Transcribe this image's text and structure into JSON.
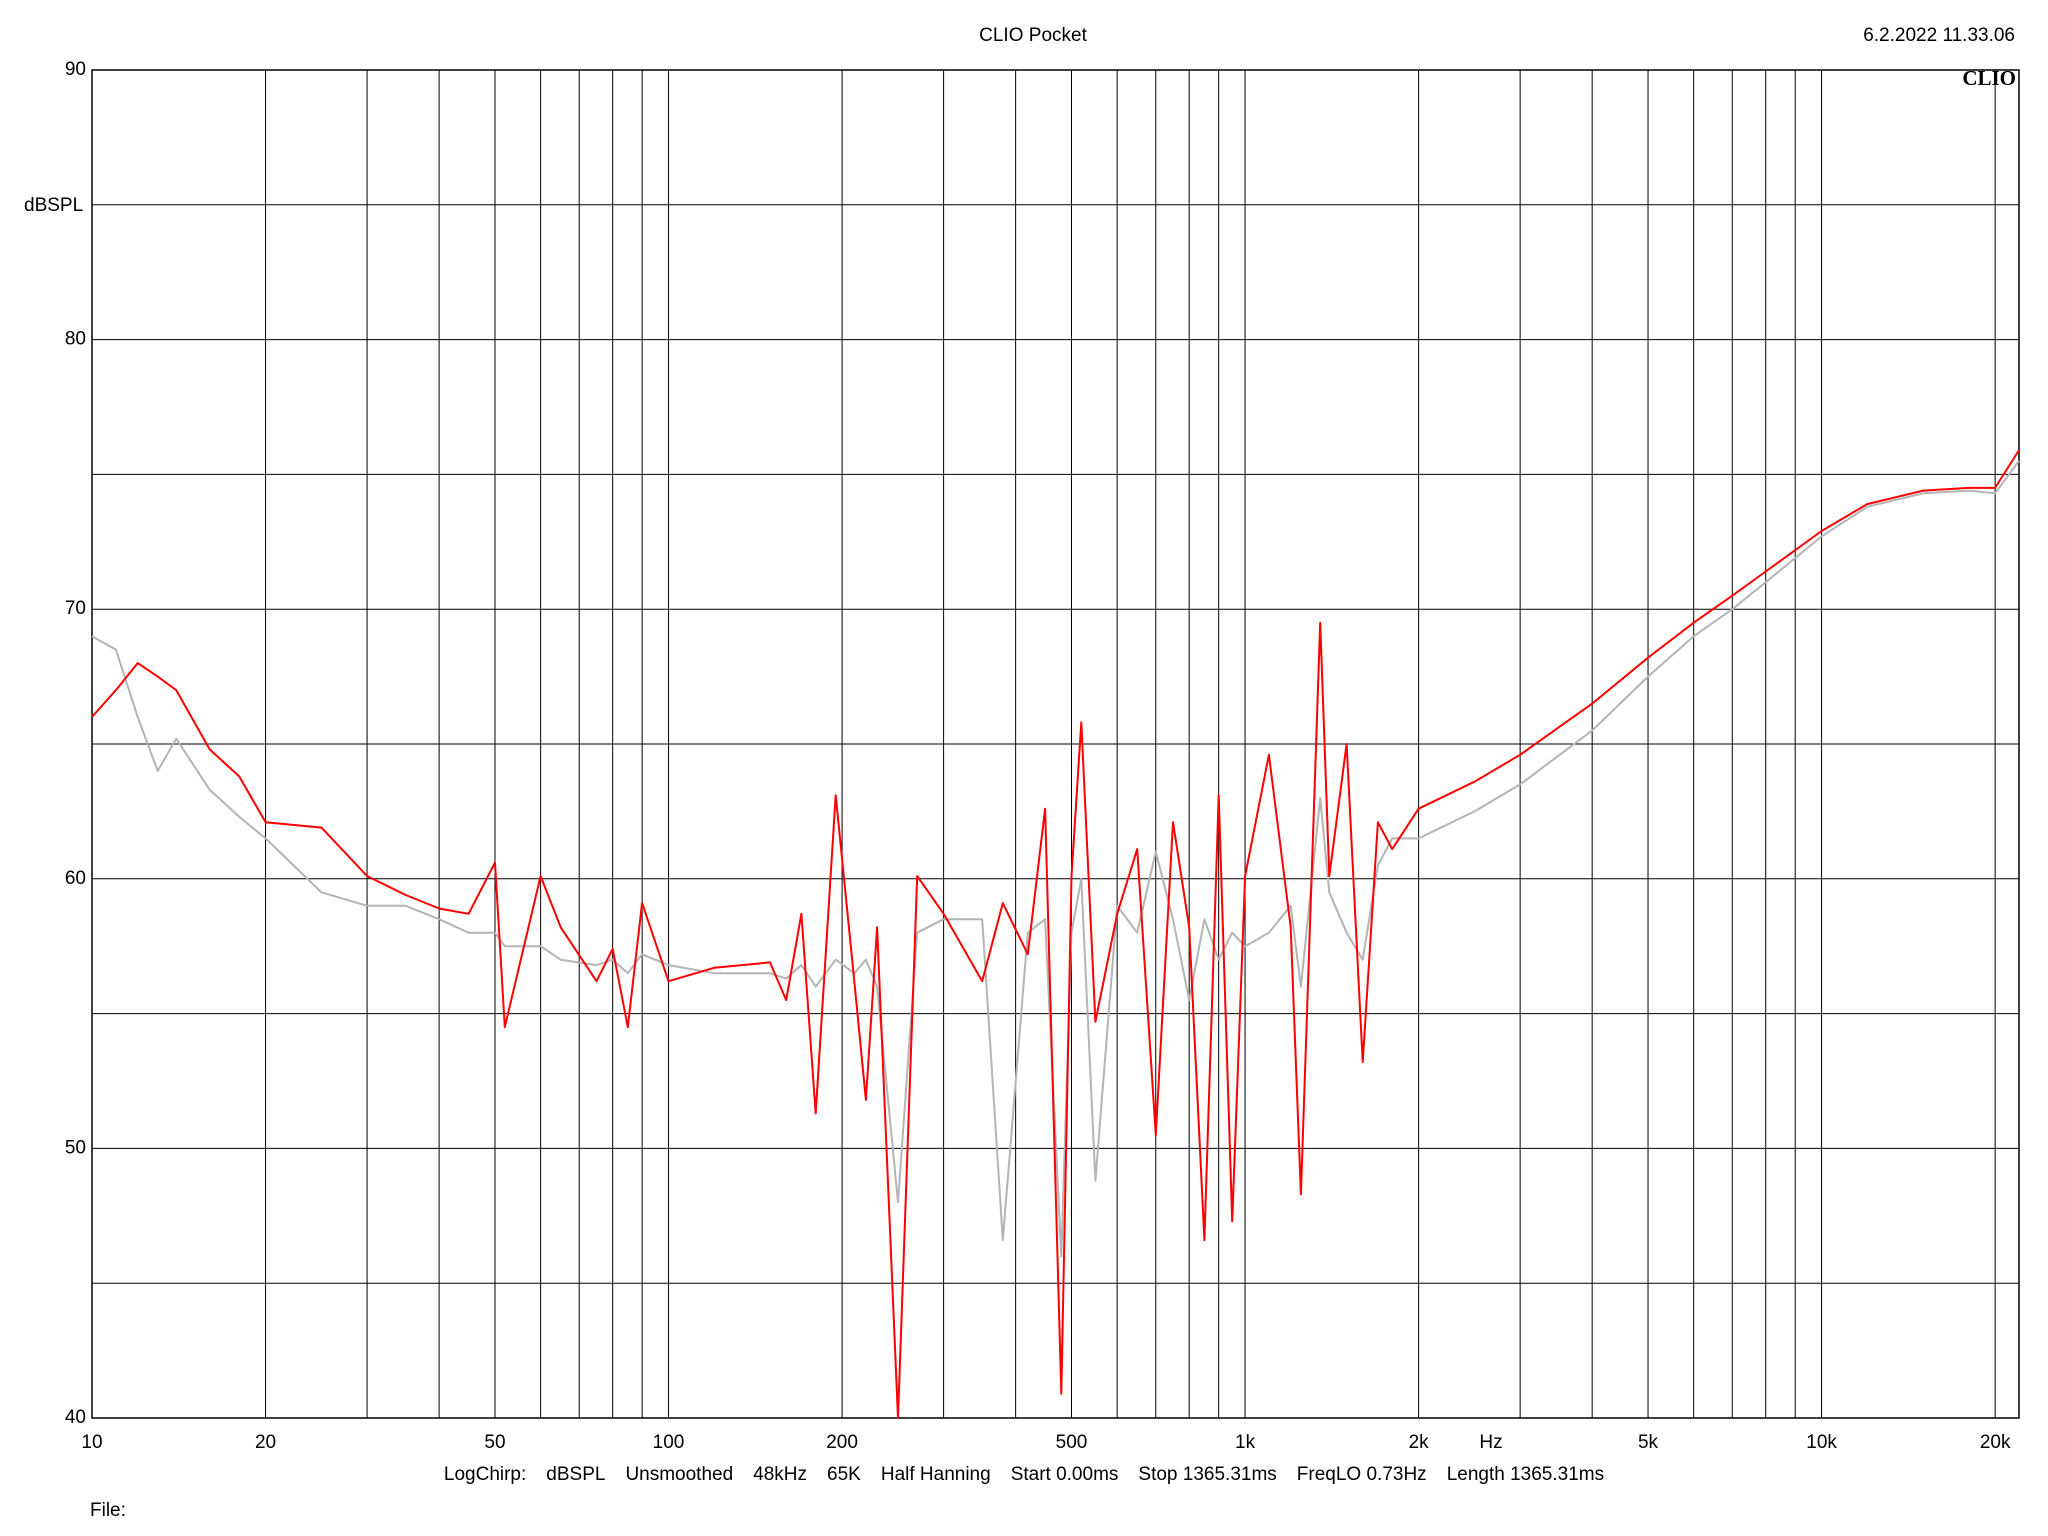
{
  "chart_data": {
    "type": "line",
    "title": "CLIO Pocket",
    "timestamp": "6.2.2022 11.33.06",
    "logo": "CLIO",
    "y_label": "dBSPL",
    "x_label": "Hz",
    "info": [
      "LogChirp:",
      "dBSPL",
      "Unsmoothed",
      "48kHz",
      "65K",
      "Half Hanning",
      "Start 0.00ms",
      "Stop 1365.31ms",
      "FreqLO 0.73Hz",
      "Length 1365.31ms"
    ],
    "file_label": "File:",
    "xscale": "log",
    "xlim": [
      10,
      22000
    ],
    "ylim": [
      40,
      90
    ],
    "yticks": [
      40,
      50,
      60,
      70,
      80,
      90
    ],
    "yminorticks": [
      45,
      55,
      65,
      75,
      85
    ],
    "xticks": [
      10,
      20,
      50,
      100,
      200,
      500,
      {
        "value": 1000,
        "label": "1k"
      },
      {
        "value": 2000,
        "label": "2k"
      },
      {
        "value": 5000,
        "label": "5k"
      },
      {
        "value": 10000,
        "label": "10k"
      },
      {
        "value": 20000,
        "label": "20k"
      }
    ],
    "xminorticks": [
      30,
      40,
      60,
      70,
      80,
      90,
      300,
      400,
      600,
      700,
      800,
      900,
      3000,
      4000,
      6000,
      7000,
      8000,
      9000
    ],
    "grid": true,
    "x": [
      10,
      11,
      12,
      13,
      14,
      16,
      18,
      20,
      25,
      30,
      35,
      40,
      45,
      50,
      52,
      60,
      65,
      75,
      80,
      85,
      90,
      100,
      120,
      150,
      160,
      170,
      180,
      195,
      210,
      220,
      230,
      250,
      270,
      300,
      350,
      380,
      420,
      450,
      480,
      500,
      520,
      550,
      600,
      650,
      700,
      750,
      800,
      850,
      900,
      950,
      1000,
      1100,
      1200,
      1250,
      1350,
      1400,
      1500,
      1600,
      1700,
      1800,
      2000,
      2500,
      3000,
      4000,
      5000,
      6000,
      7000,
      8000,
      10000,
      12000,
      15000,
      18000,
      20000,
      22000
    ],
    "series": [
      {
        "name": "Gray trace",
        "color": "#b4b4b4",
        "values": [
          69.0,
          68.5,
          66.0,
          64.0,
          65.2,
          63.3,
          62.3,
          61.5,
          59.5,
          59.0,
          59.0,
          58.5,
          58.0,
          58.0,
          57.5,
          57.5,
          57.0,
          56.8,
          57.0,
          56.5,
          57.2,
          56.8,
          56.5,
          56.5,
          56.3,
          56.8,
          56.0,
          57.0,
          56.5,
          57.0,
          56.0,
          48.0,
          58.0,
          58.5,
          58.5,
          46.6,
          58.0,
          58.5,
          46.0,
          58.0,
          60.0,
          48.8,
          59.0,
          58.0,
          61.0,
          58.5,
          55.5,
          58.5,
          57.0,
          58.0,
          57.5,
          58.0,
          59.0,
          56.0,
          63.0,
          59.5,
          58.0,
          57.0,
          60.5,
          61.5,
          61.5,
          62.5,
          63.5,
          65.5,
          67.5,
          69.0,
          70.0,
          71.0,
          72.7,
          73.8,
          74.3,
          74.4,
          74.3,
          75.5
        ]
      },
      {
        "name": "Red trace",
        "color": "#ff0000",
        "values": [
          66.0,
          67.0,
          68.0,
          67.5,
          67.0,
          64.8,
          63.8,
          62.1,
          61.9,
          60.1,
          59.4,
          58.9,
          58.7,
          60.6,
          54.5,
          60.1,
          58.2,
          56.2,
          57.4,
          54.5,
          59.1,
          56.2,
          56.7,
          56.9,
          55.5,
          58.7,
          51.3,
          63.1,
          56.2,
          51.8,
          58.2,
          40.0,
          60.1,
          58.7,
          56.2,
          59.1,
          57.2,
          62.6,
          40.9,
          60.1,
          65.8,
          54.7,
          58.7,
          61.1,
          50.5,
          62.1,
          58.2,
          46.6,
          63.1,
          47.3,
          60.1,
          64.6,
          58.2,
          48.3,
          69.5,
          60.1,
          65.0,
          53.2,
          62.1,
          61.1,
          62.6,
          63.6,
          64.6,
          66.5,
          68.2,
          69.5,
          70.5,
          71.4,
          72.9,
          73.9,
          74.4,
          74.5,
          74.5,
          75.9
        ]
      }
    ]
  }
}
